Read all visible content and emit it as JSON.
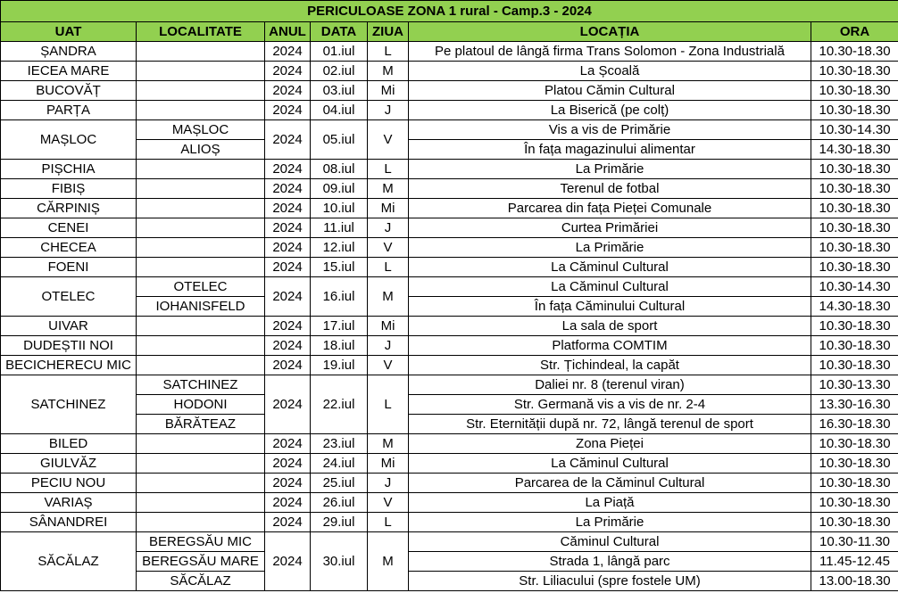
{
  "table": {
    "title": "PERICULOASE ZONA 1 rural - Camp.3 - 2024",
    "columns": [
      "UAT",
      "LOCALITATE",
      "ANUL",
      "DATA",
      "ZIUA",
      "LOCAȚIA",
      "ORA"
    ],
    "rows": [
      {
        "uat": "ȘANDRA",
        "anul": 2024,
        "data": "01.iul",
        "ziua": "L",
        "entries": [
          {
            "locatia": "Pe platoul de lângă firma Trans Solomon - Zona Industrială",
            "ora": "10.30-18.30"
          }
        ]
      },
      {
        "uat": "IECEA MARE",
        "anul": 2024,
        "data": "02.iul",
        "ziua": "M",
        "entries": [
          {
            "locatia": "La Școală",
            "ora": "10.30-18.30"
          }
        ]
      },
      {
        "uat": "BUCOVĂȚ",
        "anul": 2024,
        "data": "03.iul",
        "ziua": "Mi",
        "entries": [
          {
            "locatia": "Platou Cămin Cultural",
            "ora": "10.30-18.30"
          }
        ]
      },
      {
        "uat": "PARȚA",
        "anul": 2024,
        "data": "04.iul",
        "ziua": "J",
        "entries": [
          {
            "locatia": "La Biserică (pe colț)",
            "ora": "10.30-18.30"
          }
        ]
      },
      {
        "uat": "MAȘLOC",
        "anul": 2024,
        "data": "05.iul",
        "ziua": "V",
        "entries": [
          {
            "localitate": "MAȘLOC",
            "locatia": "Vis a vis de Primărie",
            "ora": "10.30-14.30"
          },
          {
            "localitate": "ALIOȘ",
            "locatia": "În fața magazinului alimentar",
            "ora": "14.30-18.30"
          }
        ]
      },
      {
        "uat": "PIȘCHIA",
        "anul": 2024,
        "data": "08.iul",
        "ziua": "L",
        "entries": [
          {
            "locatia": "La Primărie",
            "ora": "10.30-18.30"
          }
        ]
      },
      {
        "uat": "FIBIȘ",
        "anul": 2024,
        "data": "09.iul",
        "ziua": "M",
        "entries": [
          {
            "locatia": "Terenul de fotbal",
            "ora": "10.30-18.30"
          }
        ]
      },
      {
        "uat": "CĂRPINIȘ",
        "anul": 2024,
        "data": "10.iul",
        "ziua": "Mi",
        "entries": [
          {
            "locatia": "Parcarea din fața Pieței Comunale",
            "ora": "10.30-18.30"
          }
        ]
      },
      {
        "uat": "CENEI",
        "anul": 2024,
        "data": "11.iul",
        "ziua": "J",
        "entries": [
          {
            "locatia": "Curtea Primăriei",
            "ora": "10.30-18.30"
          }
        ]
      },
      {
        "uat": "CHECEA",
        "anul": 2024,
        "data": "12.iul",
        "ziua": "V",
        "entries": [
          {
            "locatia": "La Primărie",
            "ora": "10.30-18.30"
          }
        ]
      },
      {
        "uat": "FOENI",
        "anul": 2024,
        "data": "15.iul",
        "ziua": "L",
        "entries": [
          {
            "locatia": "La Căminul Cultural",
            "ora": "10.30-18.30"
          }
        ]
      },
      {
        "uat": "OTELEC",
        "anul": 2024,
        "data": "16.iul",
        "ziua": "M",
        "entries": [
          {
            "localitate": "OTELEC",
            "locatia": "La Căminul Cultural",
            "ora": "10.30-14.30"
          },
          {
            "localitate": "IOHANISFELD",
            "locatia": "În fața Căminului Cultural",
            "ora": "14.30-18.30"
          }
        ]
      },
      {
        "uat": "UIVAR",
        "anul": 2024,
        "data": "17.iul",
        "ziua": "Mi",
        "entries": [
          {
            "locatia": "La sala de sport",
            "ora": "10.30-18.30"
          }
        ]
      },
      {
        "uat": "DUDEȘTII NOI",
        "anul": 2024,
        "data": "18.iul",
        "ziua": "J",
        "entries": [
          {
            "locatia": "Platforma COMTIM",
            "ora": "10.30-18.30"
          }
        ]
      },
      {
        "uat": "BECICHERECU MIC",
        "anul": 2024,
        "data": "19.iul",
        "ziua": "V",
        "entries": [
          {
            "locatia": "Str. Țichindeal, la capăt",
            "ora": "10.30-18.30"
          }
        ]
      },
      {
        "uat": "SATCHINEZ",
        "anul": 2024,
        "data": "22.iul",
        "ziua": "L",
        "entries": [
          {
            "localitate": "SATCHINEZ",
            "locatia": "Daliei nr. 8 (terenul viran)",
            "ora": "10.30-13.30"
          },
          {
            "localitate": "HODONI",
            "locatia": "Str. Germană vis a vis de nr. 2-4",
            "ora": "13.30-16.30"
          },
          {
            "localitate": "BĂRĂTEAZ",
            "locatia": "Str. Eternității după nr. 72, lângă terenul de sport",
            "ora": "16.30-18.30"
          }
        ]
      },
      {
        "uat": "BILED",
        "anul": 2024,
        "data": "23.iul",
        "ziua": "M",
        "entries": [
          {
            "locatia": "Zona Pieței",
            "ora": "10.30-18.30"
          }
        ]
      },
      {
        "uat": "GIULVĂZ",
        "anul": 2024,
        "data": "24.iul",
        "ziua": "Mi",
        "entries": [
          {
            "locatia": "La Căminul Cultural",
            "ora": "10.30-18.30"
          }
        ]
      },
      {
        "uat": "PECIU NOU",
        "anul": 2024,
        "data": "25.iul",
        "ziua": "J",
        "entries": [
          {
            "locatia": "Parcarea de la Căminul Cultural",
            "ora": "10.30-18.30"
          }
        ]
      },
      {
        "uat": "VARIAȘ",
        "anul": 2024,
        "data": "26.iul",
        "ziua": "V",
        "entries": [
          {
            "locatia": "La Piață",
            "ora": "10.30-18.30"
          }
        ]
      },
      {
        "uat": "SÂNANDREI",
        "anul": 2024,
        "data": "29.iul",
        "ziua": "L",
        "entries": [
          {
            "locatia": "La Primărie",
            "ora": "10.30-18.30"
          }
        ]
      },
      {
        "uat": "SĂCĂLAZ",
        "anul": 2024,
        "data": "30.iul",
        "ziua": "M",
        "entries": [
          {
            "localitate": "BEREGSĂU MIC",
            "locatia": "Căminul Cultural",
            "ora": "10.30-11.30"
          },
          {
            "localitate": "BEREGSĂU MARE",
            "locatia": "Strada 1, lângă parc",
            "ora": "11.45-12.45"
          },
          {
            "localitate": "SĂCĂLAZ",
            "locatia": "Str. Liliacului (spre fostele UM)",
            "ora": "13.00-18.30"
          }
        ]
      }
    ]
  }
}
